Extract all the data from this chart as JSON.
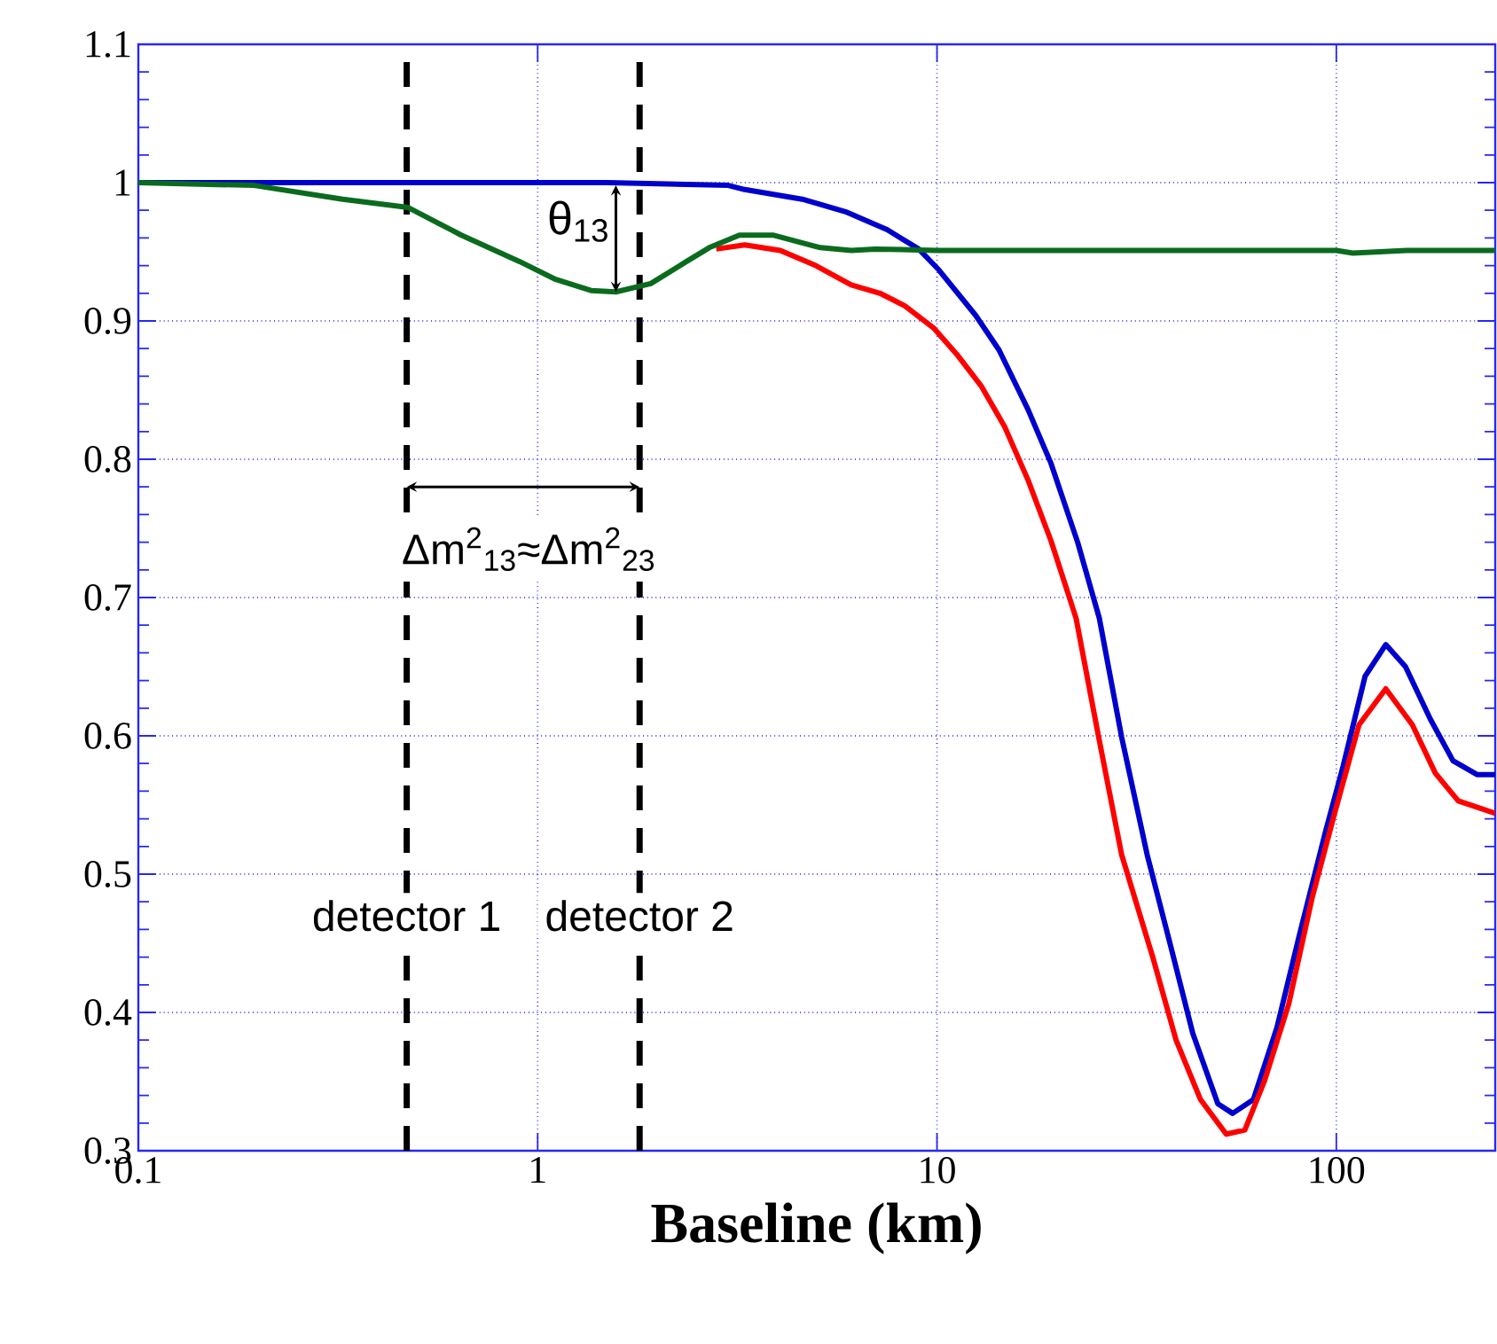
{
  "chart_data": {
    "type": "line",
    "xlabel": "Baseline (km)",
    "log": "x",
    "xlim": [
      0.1,
      250
    ],
    "ylim": [
      0.3,
      1.1
    ],
    "xticks": [
      0.1,
      1,
      10,
      100
    ],
    "yticks": [
      0.3,
      0.4,
      0.5,
      0.6,
      0.7,
      0.8,
      0.9,
      1,
      1.1
    ],
    "grid": true,
    "line_style": "solid",
    "marker": "none",
    "series": [
      {
        "color": "#0000cc",
        "x": [
          0.1,
          1.5,
          3,
          3.3,
          4.6,
          5.9,
          7.5,
          9.0,
          10.1,
          12.5,
          14.3,
          16.9,
          19.3,
          22.5,
          25.5,
          29,
          33.6,
          38.4,
          43.7,
          50.5,
          55,
          62,
          71,
          81,
          94,
          104,
          118,
          133,
          149,
          172,
          196,
          225,
          250
        ],
        "values": [
          1,
          1,
          0.998,
          0.995,
          0.988,
          0.979,
          0.966,
          0.952,
          0.937,
          0.904,
          0.879,
          0.836,
          0.797,
          0.74,
          0.685,
          0.599,
          0.514,
          0.449,
          0.385,
          0.334,
          0.327,
          0.337,
          0.389,
          0.457,
          0.531,
          0.578,
          0.643,
          0.666,
          0.65,
          0.612,
          0.582,
          0.572,
          0.572
        ]
      },
      {
        "color": "#ff0000",
        "x": [
          2.8,
          3.3,
          4.05,
          4.97,
          6.1,
          7.2,
          8.3,
          9.8,
          11.2,
          12.9,
          14.8,
          16.9,
          19.3,
          22.3,
          25.4,
          29,
          34.7,
          39.7,
          45.7,
          53,
          59,
          66,
          76,
          87,
          99,
          114,
          133,
          155,
          177,
          202,
          250
        ],
        "values": [
          0.952,
          0.955,
          0.951,
          0.94,
          0.926,
          0.92,
          0.911,
          0.895,
          0.876,
          0.853,
          0.823,
          0.785,
          0.741,
          0.685,
          0.599,
          0.514,
          0.44,
          0.38,
          0.337,
          0.312,
          0.315,
          0.35,
          0.406,
          0.483,
          0.544,
          0.608,
          0.634,
          0.608,
          0.573,
          0.553,
          0.544
        ]
      },
      {
        "color": "#0a6b1e",
        "x": [
          0.1,
          0.195,
          0.325,
          0.474,
          0.644,
          0.9,
          1.11,
          1.36,
          1.57,
          1.92,
          2.36,
          2.69,
          3.2,
          3.9,
          5.1,
          6.1,
          7.0,
          10,
          50,
          100,
          110,
          150,
          250
        ],
        "values": [
          1,
          0.998,
          0.988,
          0.982,
          0.962,
          0.943,
          0.93,
          0.922,
          0.921,
          0.927,
          0.943,
          0.953,
          0.962,
          0.962,
          0.953,
          0.951,
          0.952,
          0.951,
          0.951,
          0.951,
          0.949,
          0.951,
          0.951
        ]
      }
    ],
    "ref_lines": [
      {
        "axis": "x",
        "value": 0.47,
        "label": "detector 1",
        "color": "#000000",
        "line_style": "dashed"
      },
      {
        "axis": "x",
        "value": 1.8,
        "label": "detector 2",
        "color": "#000000",
        "line_style": "dashed"
      }
    ],
    "annotations": [
      {
        "text": "θ$_{13}$",
        "x": 1.57,
        "y": 0.921
      },
      {
        "text": "Δm$^{2}$$_{13}$≈Δm$^{2}$$_{23}$",
        "x": 1.8,
        "y": 0.78
      }
    ]
  }
}
